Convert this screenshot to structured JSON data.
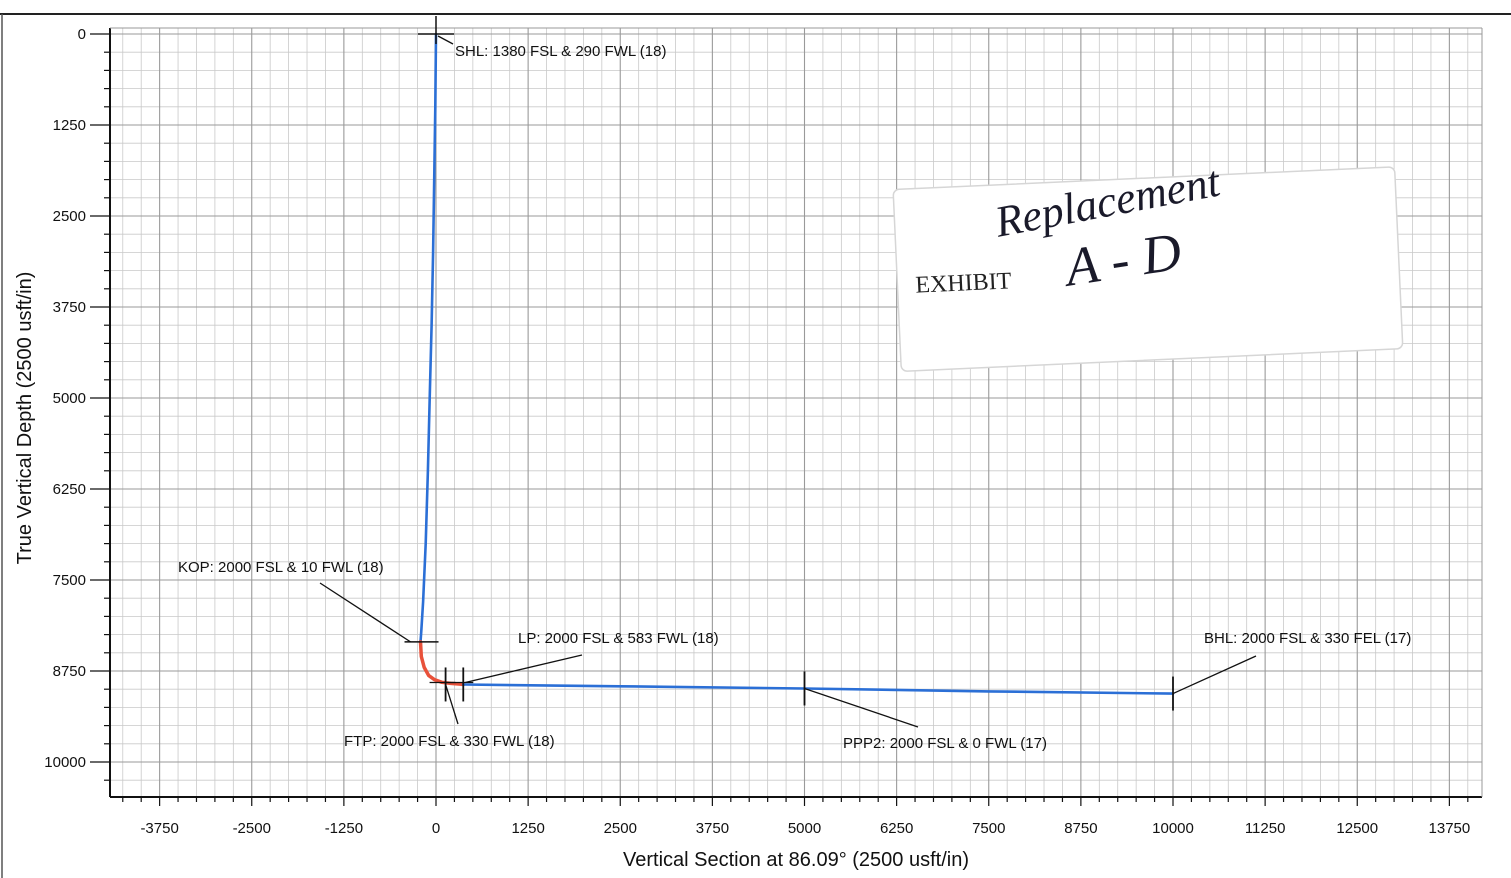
{
  "chart_data": {
    "type": "line",
    "title": "",
    "xlabel": "Vertical Section at 86.09° (2500 usft/in)",
    "ylabel": "True Vertical Depth (2500 usft/in)",
    "xlim": [
      -4600,
      14250
    ],
    "ylim": [
      0,
      10450
    ],
    "y_inverted": true,
    "grid": true,
    "x_ticks": [
      -3750,
      -2500,
      -1250,
      0,
      1250,
      2500,
      3750,
      5000,
      6250,
      7500,
      8750,
      10000,
      11250,
      12500,
      13750
    ],
    "x_tick_labels": [
      "-3750",
      "-2500",
      "-1250",
      "0",
      "1250",
      "2500",
      "3750",
      "5000",
      "6250",
      "7500",
      "8750",
      "10000",
      "11250",
      "12500",
      "13750"
    ],
    "y_ticks": [
      0,
      1250,
      2500,
      3750,
      5000,
      6250,
      7500,
      8750,
      10000
    ],
    "y_tick_labels": [
      "0",
      "1250",
      "2500",
      "3750",
      "5000",
      "6250",
      "7500",
      "8750",
      "10000"
    ],
    "series": [
      {
        "color": "#2b6fd6",
        "x": [
          0,
          -10,
          -25,
          -40,
          -60,
          -85,
          -110,
          -140,
          -175,
          -200,
          -210
        ],
        "y": [
          0,
          1000,
          2000,
          3000,
          4000,
          5000,
          6000,
          7000,
          7800,
          8200,
          8350
        ]
      },
      {
        "color": "#e8513a",
        "x": [
          -210,
          -200,
          -160,
          -100,
          -20,
          80,
          200,
          330,
          370
        ],
        "y": [
          8350,
          8550,
          8700,
          8810,
          8870,
          8905,
          8920,
          8930,
          8935
        ]
      },
      {
        "color": "#2b6fd6",
        "x": [
          370,
          2500,
          5000,
          7500,
          10000
        ],
        "y": [
          8935,
          8960,
          8990,
          9030,
          9060
        ]
      }
    ],
    "markers": [
      {
        "x": 0,
        "y": 0
      },
      {
        "x": -210,
        "y": 8350
      },
      {
        "x": 370,
        "y": 8935
      },
      {
        "x": 130,
        "y": 8935
      },
      {
        "x": 5000,
        "y": 8990
      },
      {
        "x": 10000,
        "y": 9060
      }
    ],
    "annotations": [
      {
        "text": "SHL: 1380 FSL & 290 FWL (18)",
        "x": 0,
        "y": 0
      },
      {
        "text": "KOP: 2000 FSL & 10 FWL (18)",
        "x": -210,
        "y": 8350
      },
      {
        "text": "LP: 2000 FSL & 583 FWL (18)",
        "x": 370,
        "y": 8935
      },
      {
        "text": "FTP: 2000 FSL & 330 FWL (18)",
        "x": 130,
        "y": 8935
      },
      {
        "text": "PPP2: 2000 FSL & 0 FWL (17)",
        "x": 5000,
        "y": 8990
      },
      {
        "text": "BHL: 2000 FSL & 330 FEL (17)",
        "x": 10000,
        "y": 9060
      }
    ]
  },
  "stamp": {
    "exhibit_text": "EXHIBIT",
    "handwritten_top": "Replacement",
    "handwritten_bottom": "A - D"
  }
}
